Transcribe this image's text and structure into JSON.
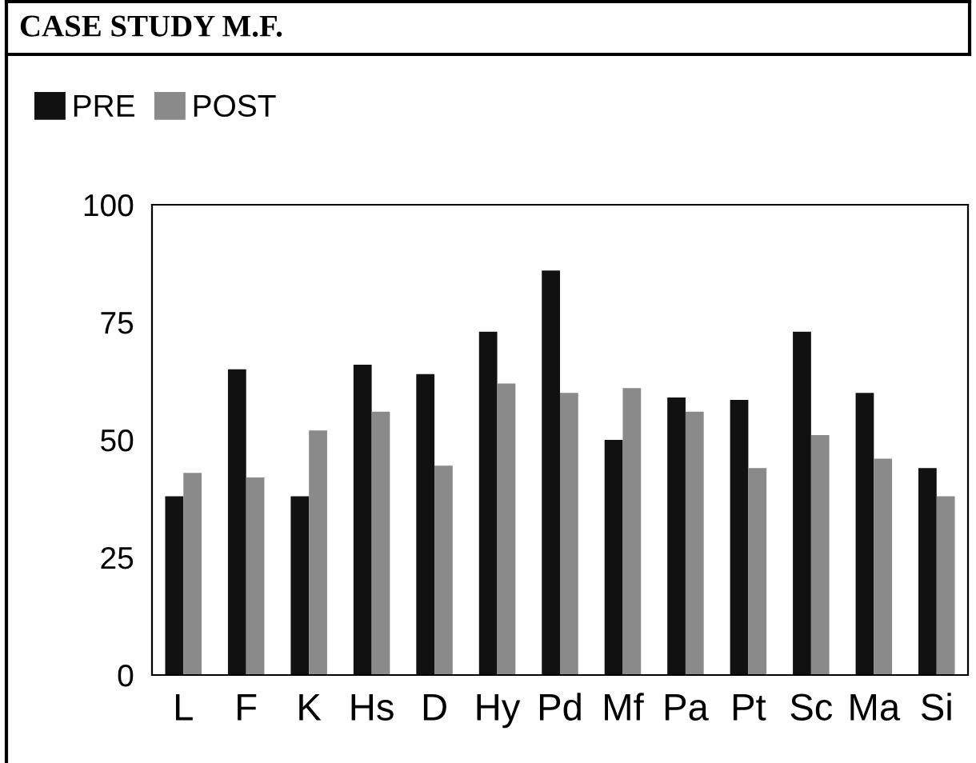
{
  "chart_data": {
    "type": "bar",
    "title": "CASE STUDY M.F.",
    "categories": [
      "L",
      "F",
      "K",
      "Hs",
      "D",
      "Hy",
      "Pd",
      "Mf",
      "Pa",
      "Pt",
      "Sc",
      "Ma",
      "Si"
    ],
    "series": [
      {
        "name": "PRE",
        "color": "#111111",
        "values": [
          38,
          65,
          38,
          66,
          64,
          73,
          86,
          50,
          59,
          58.5,
          73,
          60,
          44
        ]
      },
      {
        "name": "POST",
        "color": "#8a8a8a",
        "values": [
          43,
          42,
          52,
          56,
          44.5,
          62,
          60,
          61,
          56,
          44,
          51,
          46,
          38
        ]
      }
    ],
    "ylim": [
      0,
      100
    ],
    "yticks": [
      0,
      25,
      50,
      75,
      100
    ],
    "grid": false,
    "legend": "top left"
  }
}
